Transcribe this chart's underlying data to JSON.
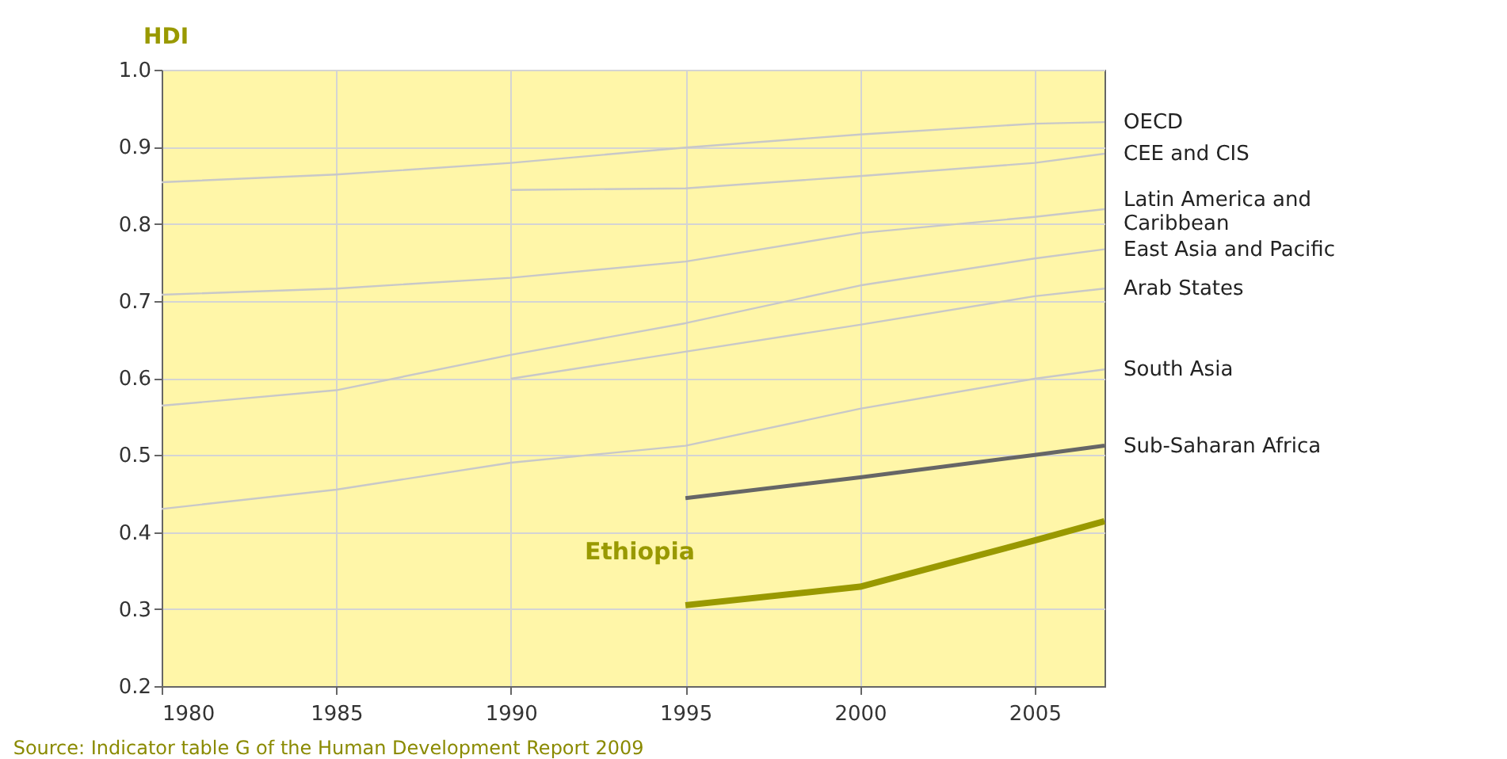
{
  "chart_data": {
    "type": "line",
    "ylabel": "HDI",
    "xlim": [
      1980,
      2007
    ],
    "xticks": [
      1980,
      1985,
      1990,
      1995,
      2000,
      2005
    ],
    "ylim": [
      0.2,
      1.0
    ],
    "yticks": [
      0.2,
      0.3,
      0.4,
      0.5,
      0.6,
      0.7,
      0.8,
      0.9,
      {
        "value": 1.0,
        "label": "1.0"
      }
    ],
    "grid": true,
    "marker": "none",
    "line_style": "solid",
    "annotations": [
      "Source: Indicator table G of the Human Development Report 2009"
    ],
    "series": [
      {
        "name": "OECD",
        "color": "#c8c8c8",
        "x": [
          1980,
          1985,
          1990,
          1995,
          2000,
          2005,
          2007
        ],
        "values": [
          0.854,
          0.864,
          0.879,
          0.899,
          0.916,
          0.93,
          0.932
        ]
      },
      {
        "name": "CEE and CIS",
        "color": "#c8c8c8",
        "x": [
          1990,
          1995,
          2000,
          2005,
          2007
        ],
        "values": [
          0.844,
          0.846,
          0.862,
          0.879,
          0.891
        ]
      },
      {
        "name": "Latin America and\nCaribbean",
        "color": "#c8c8c8",
        "x": [
          1980,
          1985,
          1990,
          1995,
          2000,
          2005,
          2007
        ],
        "values": [
          0.708,
          0.716,
          0.73,
          0.751,
          0.788,
          0.809,
          0.819
        ]
      },
      {
        "name": "East Asia and Pacific",
        "color": "#c8c8c8",
        "x": [
          1980,
          1985,
          1990,
          1995,
          2000,
          2005,
          2007
        ],
        "values": [
          0.564,
          0.584,
          0.63,
          0.671,
          0.72,
          0.755,
          0.767
        ]
      },
      {
        "name": "Arab States",
        "color": "#c8c8c8",
        "x": [
          1990,
          1995,
          2000,
          2005,
          2007
        ],
        "values": [
          0.599,
          0.634,
          0.669,
          0.706,
          0.716
        ]
      },
      {
        "name": "South Asia",
        "color": "#c8c8c8",
        "x": [
          1980,
          1985,
          1990,
          1995,
          2000,
          2005,
          2007
        ],
        "values": [
          0.43,
          0.455,
          0.49,
          0.512,
          0.56,
          0.599,
          0.611
        ]
      },
      {
        "name": "Sub-Saharan Africa",
        "color": "#666666",
        "x": [
          1995,
          2000,
          2005,
          2007
        ],
        "values": [
          0.444,
          0.471,
          0.5,
          0.512
        ]
      },
      {
        "name": "Ethiopia",
        "color": "#999900",
        "x": [
          1995,
          2000,
          2005,
          2007
        ],
        "values": [
          0.305,
          0.329,
          0.389,
          0.414
        ]
      }
    ]
  }
}
